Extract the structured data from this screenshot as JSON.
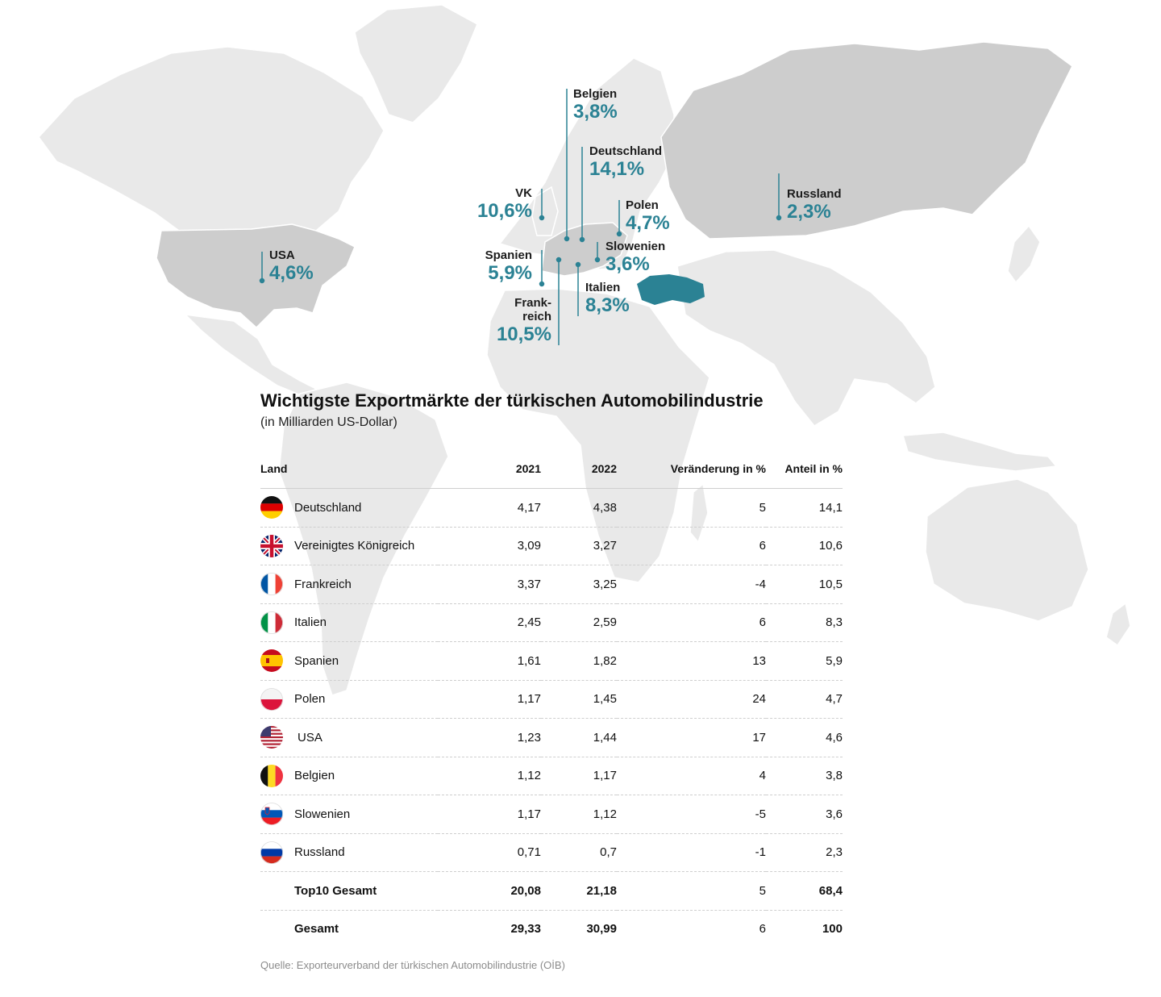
{
  "callouts": [
    {
      "name": "Belgien",
      "value": "3,8%"
    },
    {
      "name": "Deutschland",
      "value": "14,1%"
    },
    {
      "name": "VK",
      "value": "10,6%"
    },
    {
      "name": "Polen",
      "value": "4,7%"
    },
    {
      "name": "Russland",
      "value": "2,3%"
    },
    {
      "name": "USA",
      "value": "4,6%"
    },
    {
      "name": "Spanien",
      "value": "5,9%"
    },
    {
      "name": "Slowenien",
      "value": "3,6%"
    },
    {
      "name": "Italien",
      "value": "8,3%"
    },
    {
      "name": "Frank-",
      "name2": "reich",
      "value": "10,5%"
    }
  ],
  "title": "Wichtigste Exportmärkte der türkischen Automobilindustrie",
  "subtitle": "(in Milliarden US-Dollar)",
  "table": {
    "headers": [
      "Land",
      "2021",
      "2022",
      "Veränderung in %",
      "Anteil in %"
    ],
    "rows": [
      {
        "flag": "germany-flag-icon",
        "land": "Deutschland",
        "y2021": "4,17",
        "y2022": "4,38",
        "change": "5",
        "share": "14,1"
      },
      {
        "flag": "uk-flag-icon",
        "land": "Vereinigtes Königreich",
        "y2021": "3,09",
        "y2022": "3,27",
        "change": "6",
        "share": "10,6"
      },
      {
        "flag": "france-flag-icon",
        "land": "Frankreich",
        "y2021": "3,37",
        "y2022": "3,25",
        "change": "-4",
        "share": "10,5"
      },
      {
        "flag": "italy-flag-icon",
        "land": "Italien",
        "y2021": "2,45",
        "y2022": "2,59",
        "change": "6",
        "share": "8,3"
      },
      {
        "flag": "spain-flag-icon",
        "land": "Spanien",
        "y2021": "1,61",
        "y2022": "1,82",
        "change": "13",
        "share": "5,9"
      },
      {
        "flag": "poland-flag-icon",
        "land": "Polen",
        "y2021": "1,17",
        "y2022": "1,45",
        "change": "24",
        "share": "4,7"
      },
      {
        "flag": "usa-flag-icon",
        "land": "USA",
        "y2021": "1,23",
        "y2022": "1,44",
        "change": "17",
        "share": "4,6"
      },
      {
        "flag": "belgium-flag-icon",
        "land": "Belgien",
        "y2021": "1,12",
        "y2022": "1,17",
        "change": "4",
        "share": "3,8"
      },
      {
        "flag": "slovenia-flag-icon",
        "land": "Slowenien",
        "y2021": "1,17",
        "y2022": "1,12",
        "change": "-5",
        "share": "3,6"
      },
      {
        "flag": "russia-flag-icon",
        "land": "Russland",
        "y2021": "0,71",
        "y2022": "0,7",
        "change": "-1",
        "share": "2,3"
      },
      {
        "flag": "",
        "land": "Top10 Gesamt",
        "y2021": "20,08",
        "y2022": "21,18",
        "change": "5",
        "share": "68,4"
      },
      {
        "flag": "",
        "land": "Gesamt",
        "y2021": "29,33",
        "y2022": "30,99",
        "change": "6",
        "share": "100"
      }
    ]
  },
  "source": "Quelle: Exporteurverband der türkischen Automobilindustrie (OİB)",
  "colors": {
    "land": "#e9e9e9",
    "highlighted_land": "#cdcdcd",
    "turkey": "#2b8294",
    "accent_text": "#2b8294"
  }
}
